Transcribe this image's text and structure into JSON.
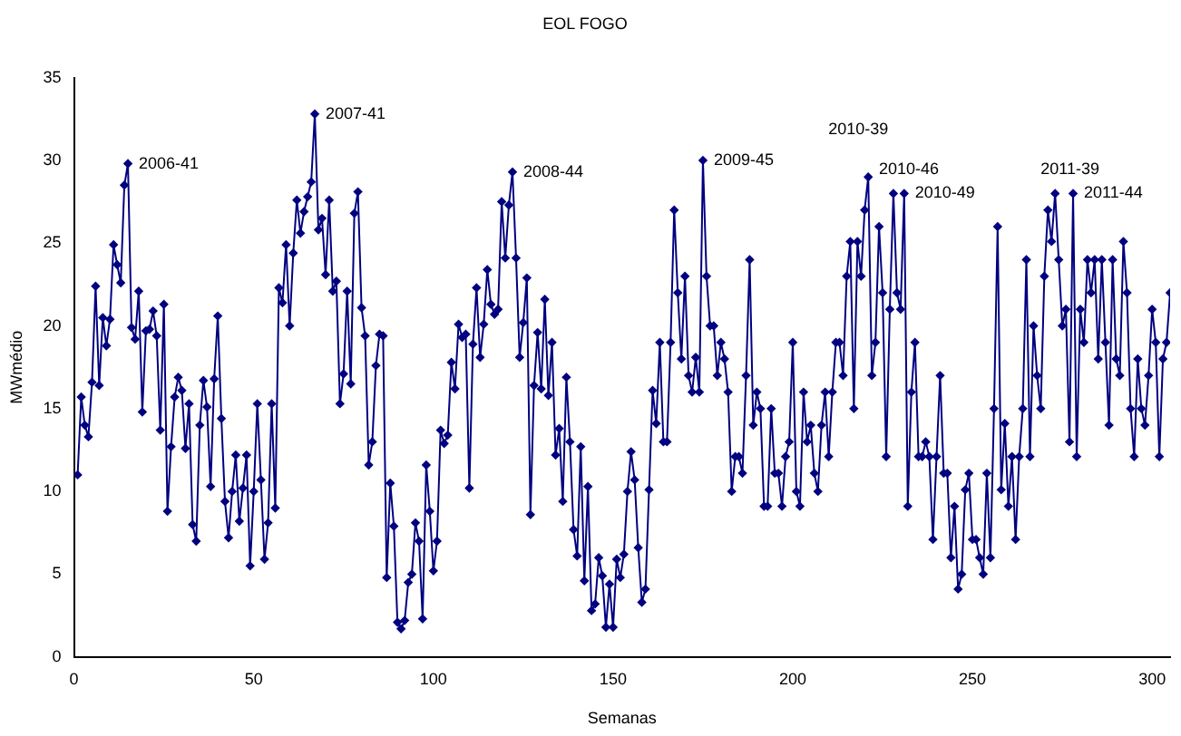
{
  "chart_data": {
    "type": "line",
    "title": "EOL FOGO",
    "xlabel": "Semanas",
    "ylabel": "MWmédio",
    "x": [
      1,
      2,
      3,
      4,
      5,
      6,
      7,
      8,
      9,
      10,
      11,
      12,
      13,
      14,
      15,
      16,
      17,
      18,
      19,
      20,
      21,
      22,
      23,
      24,
      25,
      26,
      27,
      28,
      29,
      30,
      31,
      32,
      33,
      34,
      35,
      36,
      37,
      38,
      39,
      40,
      41,
      42,
      43,
      44,
      45,
      46,
      47,
      48,
      49,
      50,
      51,
      52,
      53,
      54,
      55,
      56,
      57,
      58,
      59,
      60,
      61,
      62,
      63,
      64,
      65,
      66,
      67,
      68,
      69,
      70,
      71,
      72,
      73,
      74,
      75,
      76,
      77,
      78,
      79,
      80,
      81,
      82,
      83,
      84,
      85,
      86,
      87,
      88,
      89,
      90,
      91,
      92,
      93,
      94,
      95,
      96,
      97,
      98,
      99,
      100,
      101,
      102,
      103,
      104,
      105,
      106,
      107,
      108,
      109,
      110,
      111,
      112,
      113,
      114,
      115,
      116,
      117,
      118,
      119,
      120,
      121,
      122,
      123,
      124,
      125,
      126,
      127,
      128,
      129,
      130,
      131,
      132,
      133,
      134,
      135,
      136,
      137,
      138,
      139,
      140,
      141,
      142,
      143,
      144,
      145,
      146,
      147,
      148,
      149,
      150,
      151,
      152,
      153,
      154,
      155,
      156,
      157,
      158,
      159,
      160,
      161,
      162,
      163,
      164,
      165,
      166,
      167,
      168,
      169,
      170,
      171,
      172,
      173,
      174,
      175,
      176,
      177,
      178,
      179,
      180,
      181,
      182,
      183,
      184,
      185,
      186,
      187,
      188,
      189,
      190,
      191,
      192,
      193,
      194,
      195,
      196,
      197,
      198,
      199,
      200,
      201,
      202,
      203,
      204,
      205,
      206,
      207,
      208,
      209,
      210,
      211,
      212,
      213,
      214,
      215,
      216,
      217,
      218,
      219,
      220,
      221,
      222,
      223,
      224,
      225,
      226,
      227,
      228,
      229,
      230,
      231,
      232,
      233,
      234,
      235,
      236,
      237,
      238,
      239,
      240,
      241,
      242,
      243,
      244,
      245,
      246,
      247,
      248,
      249,
      250,
      251,
      252,
      253,
      254,
      255,
      256,
      257,
      258,
      259,
      260,
      261,
      262,
      263,
      264,
      265,
      266,
      267,
      268,
      269,
      270,
      271,
      272,
      273,
      274,
      275,
      276,
      277,
      278,
      279,
      280,
      281,
      282,
      283,
      284,
      285,
      286,
      287,
      288,
      289,
      290,
      291,
      292,
      293,
      294,
      295,
      296,
      297,
      298,
      299,
      300,
      301,
      302,
      303,
      304,
      305
    ],
    "series": [
      {
        "color": "#000080",
        "values": [
          11.0,
          15.7,
          14.0,
          13.3,
          16.6,
          22.4,
          16.4,
          20.5,
          18.8,
          20.4,
          24.9,
          23.7,
          22.6,
          28.5,
          29.8,
          19.9,
          19.2,
          22.1,
          14.8,
          19.7,
          19.8,
          20.9,
          19.4,
          13.7,
          21.3,
          8.8,
          12.7,
          15.7,
          16.9,
          16.1,
          12.6,
          15.3,
          8.0,
          7.0,
          14.0,
          16.7,
          15.1,
          10.3,
          16.8,
          20.6,
          14.4,
          9.4,
          7.2,
          10.0,
          12.2,
          8.2,
          10.2,
          12.2,
          5.5,
          10.0,
          15.3,
          10.7,
          5.9,
          8.1,
          15.3,
          9.0,
          22.3,
          21.4,
          24.9,
          20.0,
          24.4,
          27.6,
          25.6,
          26.9,
          27.8,
          28.7,
          32.8,
          25.8,
          26.5,
          23.1,
          27.6,
          22.1,
          22.7,
          15.3,
          17.1,
          22.1,
          16.5,
          26.8,
          28.1,
          21.1,
          19.4,
          11.6,
          13.0,
          17.6,
          19.5,
          19.4,
          4.8,
          10.5,
          7.9,
          2.1,
          1.7,
          2.2,
          4.5,
          5.0,
          8.1,
          7.0,
          2.3,
          11.6,
          8.8,
          5.2,
          7.0,
          13.7,
          12.9,
          13.4,
          17.8,
          16.2,
          20.1,
          19.3,
          19.5,
          10.2,
          18.9,
          22.3,
          18.1,
          20.1,
          23.4,
          21.3,
          20.7,
          21.0,
          27.5,
          24.1,
          27.3,
          29.3,
          24.1,
          18.1,
          20.2,
          22.9,
          8.6,
          16.4,
          19.6,
          16.2,
          21.6,
          15.8,
          19.0,
          12.2,
          13.8,
          9.4,
          16.9,
          13.0,
          7.7,
          6.1,
          12.7,
          4.6,
          10.3,
          2.8,
          3.2,
          6.0,
          4.9,
          1.8,
          4.4,
          1.8,
          5.9,
          4.8,
          6.2,
          10.0,
          12.4,
          10.7,
          6.6,
          3.3,
          4.1,
          10.1,
          16.1,
          14.1,
          19.0,
          13.0,
          13.0,
          19.0,
          27.0,
          22.0,
          18.0,
          23.0,
          17.0,
          16.0,
          18.1,
          16.0,
          30.0,
          23.0,
          20.0,
          20.0,
          17.0,
          19.0,
          18.0,
          16.0,
          10.0,
          12.1,
          12.1,
          11.1,
          17.0,
          24.0,
          14.0,
          16.0,
          15.0,
          9.1,
          9.1,
          15.0,
          11.1,
          11.1,
          9.1,
          12.1,
          13.0,
          19.0,
          10.0,
          9.1,
          16.0,
          13.0,
          14.0,
          11.1,
          10.0,
          14.0,
          16.0,
          12.1,
          16.0,
          19.0,
          19.0,
          17.0,
          23.0,
          25.1,
          15.0,
          25.1,
          23.0,
          27.0,
          29.0,
          17.0,
          19.0,
          26.0,
          22.0,
          12.1,
          21.0,
          28.0,
          22.0,
          21.0,
          28.0,
          9.1,
          16.0,
          19.0,
          12.1,
          12.1,
          13.0,
          12.1,
          7.1,
          12.1,
          17.0,
          11.1,
          11.1,
          6.0,
          9.1,
          4.1,
          5.0,
          10.1,
          11.1,
          7.1,
          7.1,
          6.0,
          5.0,
          11.1,
          6.0,
          15.0,
          26.0,
          10.1,
          14.1,
          9.1,
          12.1,
          7.1,
          12.1,
          15.0,
          24.0,
          12.1,
          20.0,
          17.0,
          15.0,
          23.0,
          27.0,
          25.1,
          28.0,
          24.0,
          20.0,
          21.0,
          13.0,
          28.0,
          12.1,
          21.0,
          19.0,
          24.0,
          22.0,
          24.0,
          18.0,
          24.0,
          19.0,
          14.0,
          24.0,
          18.0,
          17.0,
          25.1,
          22.0,
          15.0,
          12.1,
          18.0,
          15.0,
          14.0,
          17.0,
          21.0,
          19.0,
          12.1,
          18.0,
          19.0,
          22.0
        ]
      }
    ],
    "xlim": [
      0,
      305
    ],
    "xticks": [
      0,
      50,
      100,
      150,
      200,
      250,
      300
    ],
    "ylim": [
      0,
      35
    ],
    "yticks": [
      0,
      5,
      10,
      15,
      20,
      25,
      30,
      35
    ],
    "grid": false,
    "legend": false,
    "marker": "diamond",
    "line_style": "solid",
    "annotations": [
      {
        "text": "2006-41",
        "x": 15,
        "y": 29.8
      },
      {
        "text": "2007-41",
        "x": 67,
        "y": 32.8
      },
      {
        "text": "2008-44",
        "x": 122,
        "y": 29.3
      },
      {
        "text": "2009-45",
        "x": 175,
        "y": 30.0
      },
      {
        "text": "2010-39",
        "x": 221,
        "y": 29.0
      },
      {
        "text": "2010-46",
        "x": 228,
        "y": 28.0
      },
      {
        "text": "2010-49",
        "x": 231,
        "y": 28.0
      },
      {
        "text": "2011-39",
        "x": 273,
        "y": 28.0
      },
      {
        "text": "2011-44",
        "x": 278,
        "y": 28.0
      }
    ]
  }
}
